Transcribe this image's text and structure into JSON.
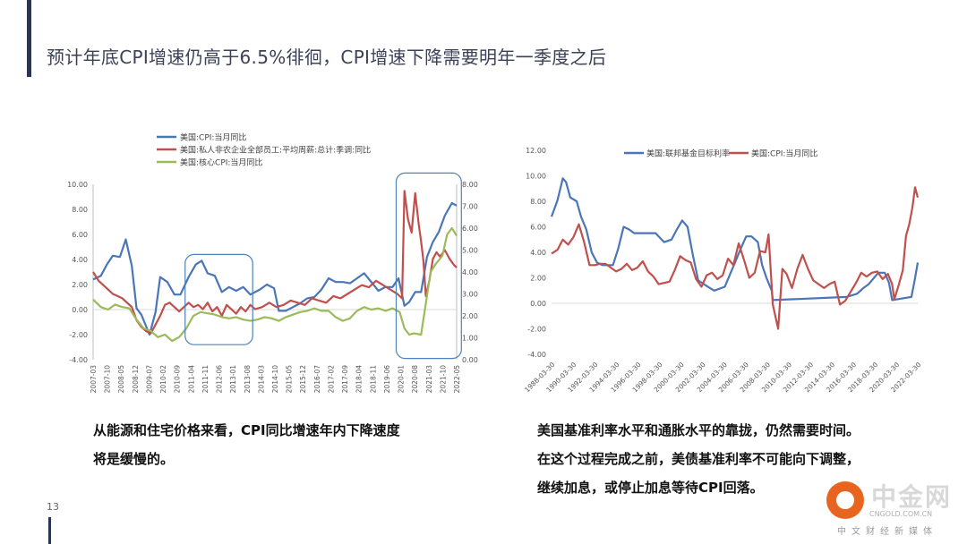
{
  "page": {
    "title": "预计年底CPI增速仍高于6.5%徘徊，CPI增速下降需要明年一季度之后",
    "page_number": "13"
  },
  "colors": {
    "blue": "#4a76b8",
    "red": "#c0504d",
    "green": "#9bbb59",
    "box": "#4f81bd"
  },
  "captions": {
    "left": [
      "从能源和住宅价格来看，CPI同比增速年内下降速度",
      "将是缓慢的。"
    ],
    "right": [
      "美国基准利率水平和通胀水平的靠拢，仍然需要时间。",
      "在这个过程完成之前，美债基准利率不可能向下调整，",
      "继续加息，或停止加息等待CPI回落。"
    ]
  },
  "logo": {
    "name": "中金网",
    "sub": "CNGOLD.COM.CN",
    "tagline": "中文财经新媒体"
  },
  "chart_data": [
    {
      "type": "line",
      "legend": [
        "美国:CPI:当月同比",
        "美国:私人非农企业全部员工:平均周薪:总计:季调:同比",
        "美国:核心CPI:当月同比"
      ],
      "y_left": {
        "ticks": [
          "10.00",
          "8.00",
          "6.00",
          "4.00",
          "2.00",
          "0.00",
          "-2.00",
          "-4.00"
        ],
        "range": [
          -4,
          10
        ]
      },
      "y_right": {
        "ticks": [
          "8.00",
          "7.00",
          "6.00",
          "5.00",
          "4.00",
          "3.00",
          "2.00",
          "1.00",
          "0.00"
        ],
        "range": [
          0,
          8
        ]
      },
      "x_ticks": [
        "2007-03",
        "2007-10",
        "2008-05",
        "2008-12",
        "2009-07",
        "2010-02",
        "2010-09",
        "2011-04",
        "2011-11",
        "2012-06",
        "2013-01",
        "2013-08",
        "2014-03",
        "2014-10",
        "2015-05",
        "2015-12",
        "2016-07",
        "2017-02",
        "2017-09",
        "2018-04",
        "2018-11",
        "2019-06",
        "2020-01",
        "2020-08",
        "2021-03",
        "2021-10",
        "2022-05"
      ],
      "x_range": [
        2007.17,
        2022.5
      ],
      "series": [
        {
          "name": "美国:CPI:当月同比",
          "axis": "left",
          "x": [
            2007.17,
            2007.5,
            2007.75,
            2008.0,
            2008.3,
            2008.55,
            2008.8,
            2009.0,
            2009.2,
            2009.55,
            2009.8,
            2010.0,
            2010.3,
            2010.6,
            2010.85,
            2011.2,
            2011.5,
            2011.75,
            2012.0,
            2012.3,
            2012.6,
            2012.9,
            2013.2,
            2013.5,
            2013.8,
            2014.2,
            2014.5,
            2014.8,
            2015.0,
            2015.3,
            2015.6,
            2015.9,
            2016.2,
            2016.5,
            2016.8,
            2017.1,
            2017.4,
            2017.7,
            2018.0,
            2018.3,
            2018.6,
            2018.9,
            2019.2,
            2019.5,
            2019.8,
            2020.05,
            2020.3,
            2020.5,
            2020.75,
            2021.0,
            2021.25,
            2021.5,
            2021.75,
            2022.0,
            2022.3,
            2022.5
          ],
          "y": [
            2.4,
            2.7,
            3.6,
            4.3,
            4.2,
            5.6,
            3.5,
            0.1,
            -0.4,
            -2.0,
            -0.2,
            2.6,
            2.2,
            1.2,
            1.2,
            2.6,
            3.6,
            3.9,
            2.9,
            2.7,
            1.4,
            1.8,
            1.5,
            1.8,
            1.2,
            1.6,
            2.0,
            1.7,
            -0.1,
            -0.1,
            0.2,
            0.5,
            0.9,
            1.0,
            1.6,
            2.5,
            2.2,
            2.2,
            2.1,
            2.5,
            2.9,
            2.2,
            1.5,
            1.8,
            1.8,
            2.5,
            0.3,
            0.6,
            1.4,
            1.4,
            4.2,
            5.4,
            6.2,
            7.5,
            8.5,
            8.3
          ]
        },
        {
          "name": "美国:私人非农企业全部员工:平均周薪:总计:季调:同比",
          "axis": "right",
          "x": [
            2007.17,
            2007.4,
            2007.6,
            2007.8,
            2008.0,
            2008.2,
            2008.4,
            2008.6,
            2008.8,
            2009.0,
            2009.2,
            2009.4,
            2009.6,
            2009.8,
            2010.0,
            2010.2,
            2010.4,
            2010.6,
            2010.8,
            2011.0,
            2011.2,
            2011.4,
            2011.6,
            2011.8,
            2012.0,
            2012.2,
            2012.4,
            2012.6,
            2012.8,
            2013.0,
            2013.2,
            2013.4,
            2013.6,
            2013.8,
            2014.0,
            2014.3,
            2014.6,
            2014.9,
            2015.2,
            2015.5,
            2015.8,
            2016.1,
            2016.4,
            2016.7,
            2017.0,
            2017.3,
            2017.6,
            2017.9,
            2018.2,
            2018.5,
            2018.8,
            2019.1,
            2019.4,
            2019.7,
            2020.0,
            2020.2,
            2020.3,
            2020.45,
            2020.6,
            2020.75,
            2020.9,
            2021.0,
            2021.1,
            2021.2,
            2021.35,
            2021.5,
            2021.65,
            2021.8,
            2022.0,
            2022.2,
            2022.4,
            2022.5
          ],
          "y": [
            4.0,
            3.6,
            3.4,
            3.2,
            3.0,
            2.9,
            2.8,
            2.6,
            2.4,
            1.8,
            1.5,
            1.3,
            1.2,
            1.6,
            2.0,
            2.5,
            2.6,
            2.4,
            2.2,
            2.4,
            2.6,
            2.4,
            2.5,
            2.3,
            2.6,
            2.2,
            2.4,
            2.0,
            2.5,
            2.3,
            2.1,
            2.4,
            2.2,
            2.5,
            2.3,
            2.4,
            2.6,
            2.4,
            2.5,
            2.7,
            2.6,
            2.5,
            2.8,
            2.7,
            2.6,
            2.9,
            2.8,
            3.0,
            3.2,
            3.4,
            3.3,
            3.6,
            3.4,
            3.2,
            3.0,
            2.8,
            7.7,
            6.4,
            5.8,
            7.6,
            6.2,
            5.4,
            4.5,
            2.9,
            3.6,
            4.6,
            4.9,
            4.7,
            5.0,
            4.6,
            4.3,
            4.2
          ]
        },
        {
          "name": "美国:核心CPI:当月同比",
          "axis": "left",
          "x": [
            2007.17,
            2007.5,
            2007.8,
            2008.1,
            2008.4,
            2008.7,
            2009.0,
            2009.3,
            2009.6,
            2009.9,
            2010.2,
            2010.5,
            2010.8,
            2011.1,
            2011.4,
            2011.7,
            2012.0,
            2012.3,
            2012.6,
            2012.9,
            2013.2,
            2013.5,
            2013.8,
            2014.1,
            2014.4,
            2014.7,
            2015.0,
            2015.3,
            2015.6,
            2015.9,
            2016.2,
            2016.5,
            2016.8,
            2017.1,
            2017.4,
            2017.7,
            2018.0,
            2018.3,
            2018.6,
            2018.9,
            2019.2,
            2019.5,
            2019.8,
            2020.1,
            2020.3,
            2020.5,
            2020.7,
            2021.0,
            2021.2,
            2021.4,
            2021.6,
            2021.9,
            2022.1,
            2022.3,
            2022.5
          ],
          "y": [
            0.8,
            0.2,
            0.0,
            0.4,
            0.2,
            0.1,
            -0.8,
            -1.5,
            -1.7,
            -2.2,
            -2.0,
            -2.5,
            -2.2,
            -1.5,
            -0.5,
            -0.2,
            -0.3,
            -0.4,
            -0.6,
            -0.7,
            -0.6,
            -0.8,
            -0.9,
            -0.8,
            -0.6,
            -0.7,
            -0.9,
            -0.6,
            -0.4,
            -0.2,
            -0.1,
            0.1,
            -0.1,
            -0.1,
            -0.6,
            -0.9,
            -0.7,
            -0.1,
            0.2,
            0.0,
            0.1,
            -0.1,
            0.1,
            -0.2,
            -1.5,
            -2.0,
            -1.9,
            -2.0,
            0.5,
            3.0,
            3.6,
            4.3,
            6.0,
            6.5,
            5.9
          ]
        }
      ]
    },
    {
      "type": "line",
      "legend": [
        "美国:联邦基金目标利率",
        "美国:CPI:当月同比"
      ],
      "y_left": {
        "ticks": [
          "12.00",
          "10.00",
          "8.00",
          "6.00",
          "4.00",
          "2.00",
          "0.00",
          "-2.00",
          "-4.00"
        ],
        "range": [
          -4,
          12
        ]
      },
      "x_ticks": [
        "1988-03-30",
        "1990-03-30",
        "1992-03-30",
        "1994-03-30",
        "1996-03-30",
        "1998-03-30",
        "2000-03-30",
        "2002-03-30",
        "2004-03-30",
        "2006-03-30",
        "2008-03-30",
        "2010-03-30",
        "2012-03-30",
        "2014-03-30",
        "2016-03-30",
        "2018-03-30",
        "2020-03-30",
        "2022-03-30"
      ],
      "x_range": [
        1988.24,
        2022.6
      ],
      "series": [
        {
          "name": "美国:联邦基金目标利率",
          "x": [
            1988.24,
            1988.8,
            1989.3,
            1989.6,
            1990.0,
            1990.6,
            1991.0,
            1991.5,
            1992.0,
            1992.5,
            1993.0,
            1994.0,
            1994.5,
            1995.0,
            1995.5,
            1996.0,
            1997.0,
            1998.0,
            1998.8,
            1999.5,
            2000.0,
            2000.5,
            2001.0,
            2001.5,
            2002.0,
            2003.0,
            2003.5,
            2004.5,
            2005.0,
            2005.5,
            2006.0,
            2006.5,
            2007.0,
            2007.6,
            2008.0,
            2008.4,
            2008.9,
            2009.0,
            2015.9,
            2016.9,
            2017.5,
            2018.0,
            2018.9,
            2019.5,
            2019.9,
            2020.2,
            2022.0,
            2022.3,
            2022.6
          ],
          "y": [
            6.8,
            8.1,
            9.8,
            9.5,
            8.3,
            8.0,
            6.8,
            5.8,
            4.0,
            3.2,
            3.0,
            3.0,
            4.3,
            6.0,
            5.8,
            5.5,
            5.5,
            5.5,
            4.8,
            5.0,
            5.8,
            6.5,
            6.0,
            3.8,
            1.8,
            1.25,
            1.0,
            1.3,
            2.3,
            3.3,
            4.3,
            5.25,
            5.25,
            4.8,
            3.0,
            2.0,
            1.0,
            0.25,
            0.5,
            0.75,
            1.2,
            1.5,
            2.4,
            2.4,
            1.6,
            0.25,
            0.5,
            1.75,
            3.2
          ]
        },
        {
          "name": "美国:CPI:当月同比",
          "x": [
            1988.24,
            1988.8,
            1989.3,
            1989.8,
            1990.3,
            1990.8,
            1991.3,
            1991.8,
            1992.3,
            1992.8,
            1993.3,
            1993.8,
            1994.3,
            1994.8,
            1995.3,
            1995.8,
            1996.3,
            1996.8,
            1997.3,
            1997.8,
            1998.3,
            1998.8,
            1999.3,
            1999.8,
            2000.3,
            2000.8,
            2001.3,
            2001.8,
            2002.3,
            2002.8,
            2003.3,
            2003.8,
            2004.3,
            2004.8,
            2005.3,
            2005.8,
            2006.3,
            2006.8,
            2007.3,
            2007.8,
            2008.3,
            2008.6,
            2009.0,
            2009.5,
            2009.9,
            2010.3,
            2010.8,
            2011.3,
            2011.8,
            2012.3,
            2012.8,
            2013.3,
            2013.8,
            2014.3,
            2014.8,
            2015.3,
            2015.8,
            2016.3,
            2016.8,
            2017.3,
            2017.8,
            2018.3,
            2018.8,
            2019.3,
            2019.8,
            2020.2,
            2020.4,
            2020.8,
            2021.2,
            2021.5,
            2021.8,
            2022.1,
            2022.35,
            2022.6
          ],
          "y": [
            3.9,
            4.2,
            5.0,
            4.6,
            5.2,
            6.2,
            4.8,
            3.0,
            3.0,
            3.1,
            3.1,
            2.8,
            2.5,
            2.7,
            3.1,
            2.6,
            2.8,
            3.3,
            2.5,
            2.1,
            1.5,
            1.6,
            1.7,
            2.6,
            3.7,
            3.4,
            3.2,
            1.9,
            1.3,
            2.2,
            2.4,
            1.9,
            2.2,
            3.5,
            3.0,
            4.7,
            3.4,
            2.0,
            2.4,
            4.1,
            4.0,
            5.4,
            -0.1,
            -2.0,
            2.7,
            2.3,
            1.2,
            2.7,
            3.8,
            2.7,
            1.8,
            1.5,
            1.2,
            1.5,
            1.7,
            -0.1,
            0.2,
            0.9,
            1.6,
            2.4,
            2.1,
            2.4,
            2.5,
            1.9,
            2.3,
            1.5,
            0.3,
            1.4,
            2.6,
            5.3,
            6.2,
            7.5,
            9.1,
            8.3
          ]
        }
      ]
    }
  ]
}
